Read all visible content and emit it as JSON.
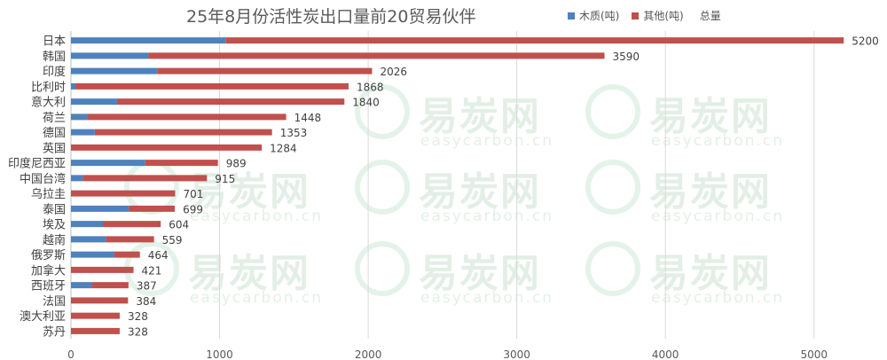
{
  "chart_data": {
    "type": "bar",
    "orientation": "horizontal",
    "stacked": true,
    "title": "25年8月份活性炭出口量前20贸易伙伴",
    "xlim": [
      0,
      5300
    ],
    "xticks": [
      0,
      1000,
      2000,
      3000,
      4000,
      5000
    ],
    "grid": true,
    "legend_position": "top-right",
    "categories": [
      "日本",
      "韩国",
      "印度",
      "比利时",
      "意大利",
      "荷兰",
      "德国",
      "英国",
      "印度尼西亚",
      "中国台湾",
      "乌拉圭",
      "泰国",
      "埃及",
      "越南",
      "俄罗斯",
      "加拿大",
      "西班牙",
      "法国",
      "澳大利亚",
      "苏丹"
    ],
    "series": [
      {
        "name": "木质(吨)",
        "color": "#4f81bd",
        "values": [
          1040,
          520,
          580,
          30,
          310,
          110,
          160,
          0,
          500,
          80,
          0,
          390,
          215,
          235,
          290,
          0,
          140,
          0,
          0,
          0
        ]
      },
      {
        "name": "其他(吨)",
        "color": "#c0504d",
        "values": [
          4160,
          3070,
          1446,
          1838,
          1530,
          1338,
          1193,
          1284,
          489,
          835,
          701,
          309,
          389,
          324,
          174,
          421,
          247,
          384,
          328,
          328
        ]
      }
    ],
    "totals_series_name": "总量",
    "totals": [
      5200,
      3590,
      2026,
      1868,
      1840,
      1448,
      1353,
      1284,
      989,
      915,
      701,
      699,
      604,
      559,
      464,
      421,
      387,
      384,
      328,
      328
    ]
  },
  "watermark": {
    "cn": "易炭网",
    "en": "easycarbon.cn"
  }
}
